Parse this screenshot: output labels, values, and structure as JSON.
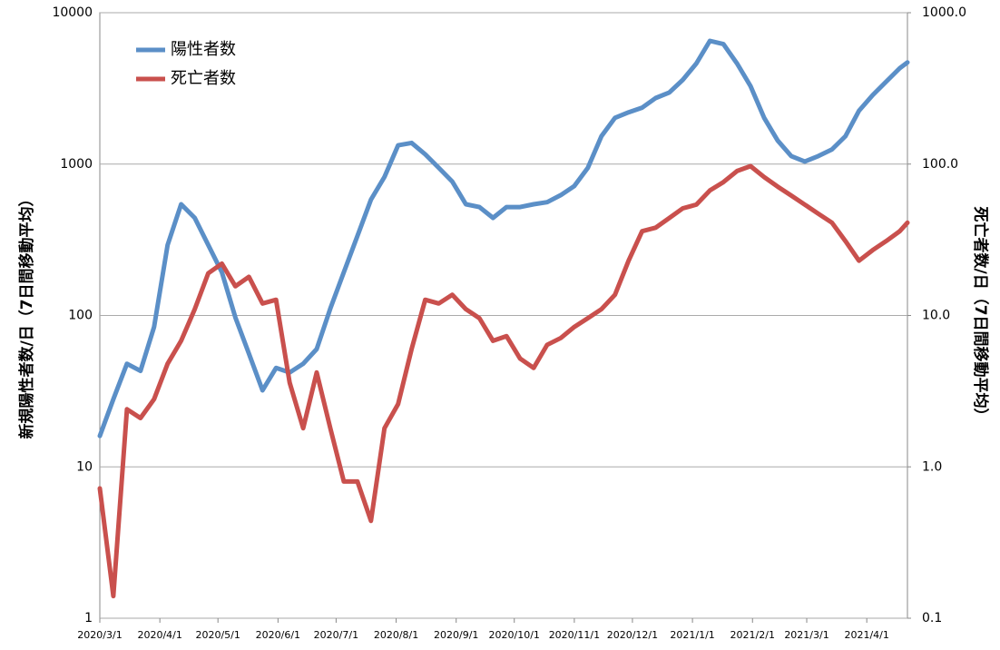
{
  "chart_data": {
    "type": "line",
    "y_label": "新規陽性者数/日（7日間移動平均）",
    "y2_label": "死亡者数/日（7日間移動平均）",
    "log_scale": true,
    "grid": true,
    "legend": "upper left",
    "xlim": [
      "2020/3/1",
      "2021/4/22"
    ],
    "xticks": [
      "2020/3/1",
      "2020/4/1",
      "2020/5/1",
      "2020/6/1",
      "2020/7/1",
      "2020/8/1",
      "2020/9/1",
      "2020/10/1",
      "2020/11/1",
      "2020/12/1",
      "2021/1/1",
      "2021/2/1",
      "2021/3/1",
      "2021/4/1"
    ],
    "ylim": [
      1,
      10000
    ],
    "yticks": [
      1,
      10,
      100,
      1000,
      10000
    ],
    "y2lim": [
      0.1,
      1000
    ],
    "y2ticks": [
      0.1,
      {
        "value": 1,
        "label": "1.0"
      },
      {
        "value": 10,
        "label": "10.0"
      },
      {
        "value": 100,
        "label": "100.0"
      },
      {
        "value": 1000,
        "label": "1000.0"
      }
    ],
    "x": [
      "2020/3/1",
      "2020/3/8",
      "2020/3/15",
      "2020/3/22",
      "2020/3/29",
      "2020/4/5",
      "2020/4/12",
      "2020/4/19",
      "2020/4/26",
      "2020/5/3",
      "2020/5/10",
      "2020/5/17",
      "2020/5/24",
      "2020/5/31",
      "2020/6/7",
      "2020/6/14",
      "2020/6/21",
      "2020/6/28",
      "2020/7/5",
      "2020/7/12",
      "2020/7/19",
      "2020/7/26",
      "2020/8/2",
      "2020/8/9",
      "2020/8/16",
      "2020/8/23",
      "2020/8/30",
      "2020/9/6",
      "2020/9/13",
      "2020/9/20",
      "2020/9/27",
      "2020/10/4",
      "2020/10/11",
      "2020/10/18",
      "2020/10/25",
      "2020/11/1",
      "2020/11/8",
      "2020/11/15",
      "2020/11/22",
      "2020/11/29",
      "2020/12/6",
      "2020/12/13",
      "2020/12/20",
      "2020/12/27",
      "2021/1/3",
      "2021/1/10",
      "2021/1/17",
      "2021/1/24",
      "2021/1/31",
      "2021/2/7",
      "2021/2/14",
      "2021/2/21",
      "2021/2/28",
      "2021/3/7",
      "2021/3/14",
      "2021/3/21",
      "2021/3/28",
      "2021/4/4",
      "2021/4/11",
      "2021/4/18",
      "2021/4/22"
    ],
    "series": [
      {
        "name": "陽性者数",
        "color": "#5b8fc7",
        "axis": "y",
        "values": [
          16,
          28,
          48,
          43,
          84,
          292,
          543,
          441,
          292,
          193,
          97,
          56,
          32,
          45,
          42,
          48,
          60,
          111,
          193,
          335,
          582,
          822,
          1330,
          1380,
          1160,
          944,
          767,
          543,
          520,
          441,
          520,
          520,
          543,
          560,
          624,
          716,
          944,
          1530,
          2020,
          2200,
          2360,
          2730,
          2970,
          3600,
          4620,
          6520,
          6200,
          4620,
          3270,
          2020,
          1430,
          1130,
          1040,
          1130,
          1250,
          1530,
          2250,
          2850,
          3500,
          4300,
          4700
        ]
      },
      {
        "name": "死亡者数",
        "color": "#c9504d",
        "axis": "y2",
        "values": [
          0.72,
          0.14,
          2.4,
          2.1,
          2.8,
          4.8,
          6.8,
          11,
          19,
          22,
          15.6,
          18,
          12,
          12.7,
          3.6,
          1.8,
          4.2,
          1.8,
          0.8,
          0.8,
          0.44,
          1.8,
          2.6,
          6.0,
          12.7,
          12,
          13.7,
          11,
          9.6,
          6.8,
          7.3,
          5.2,
          4.5,
          6.4,
          7.1,
          8.4,
          9.6,
          11,
          13.7,
          23,
          36,
          38,
          44,
          51,
          54,
          67,
          76,
          90,
          97,
          82,
          71,
          62,
          54,
          47,
          41,
          31,
          23,
          27,
          31,
          36,
          41
        ]
      }
    ]
  }
}
